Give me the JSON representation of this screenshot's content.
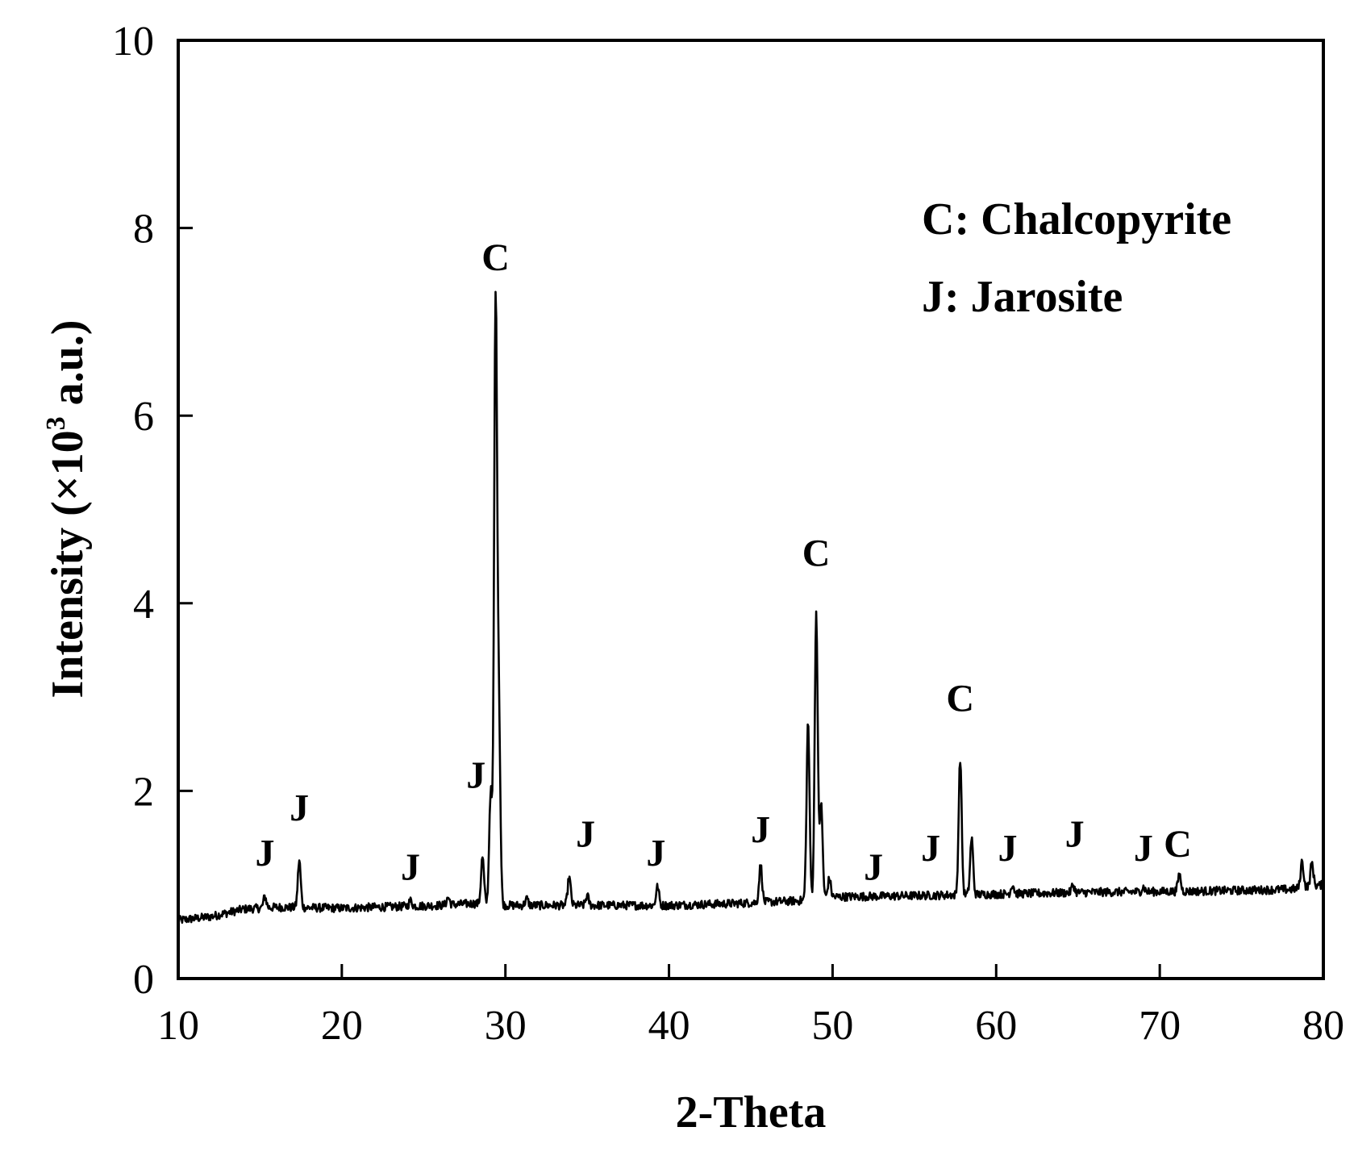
{
  "chart_data": {
    "type": "line",
    "title": "",
    "xlabel": "2-Theta",
    "ylabel_main": "Intensity (×10",
    "ylabel_sup": "3",
    "ylabel_tail": " a.u.)",
    "xlim": [
      10,
      80
    ],
    "ylim": [
      0,
      10
    ],
    "xticks": [
      10,
      20,
      30,
      40,
      50,
      60,
      70,
      80
    ],
    "yticks": [
      0,
      2,
      4,
      6,
      8,
      10
    ],
    "grid": false,
    "line_color": "#000000",
    "legend": {
      "placement": "top-right",
      "entries": [
        "C: Chalcopyrite",
        "J: Jarosite"
      ]
    },
    "series": [
      {
        "baseline": [
          [
            10,
            0.62
          ],
          [
            12,
            0.66
          ],
          [
            14,
            0.74
          ],
          [
            16,
            0.76
          ],
          [
            20,
            0.75
          ],
          [
            26,
            0.78
          ],
          [
            28,
            0.8
          ],
          [
            30,
            0.78
          ],
          [
            34,
            0.78
          ],
          [
            40,
            0.78
          ],
          [
            44,
            0.8
          ],
          [
            48,
            0.83
          ],
          [
            50,
            0.87
          ],
          [
            54,
            0.88
          ],
          [
            60,
            0.9
          ],
          [
            66,
            0.92
          ],
          [
            72,
            0.93
          ],
          [
            78,
            0.95
          ],
          [
            80,
            1.0
          ]
        ],
        "peaks": [
          [
            15.3,
            0.12
          ],
          [
            17.4,
            0.5
          ],
          [
            24.2,
            0.06
          ],
          [
            26.5,
            0.08
          ],
          [
            28.6,
            0.5
          ],
          [
            29.1,
            1.2
          ],
          [
            29.4,
            6.4
          ],
          [
            29.6,
            2.0
          ],
          [
            31.3,
            0.07
          ],
          [
            33.9,
            0.3
          ],
          [
            35.0,
            0.1
          ],
          [
            39.3,
            0.2
          ],
          [
            45.6,
            0.4
          ],
          [
            48.5,
            1.9
          ],
          [
            49.0,
            3.05
          ],
          [
            49.3,
            1.0
          ],
          [
            49.8,
            0.2
          ],
          [
            57.8,
            1.45
          ],
          [
            58.5,
            0.6
          ],
          [
            61.0,
            0.1
          ],
          [
            64.7,
            0.08
          ],
          [
            69.0,
            0.05
          ],
          [
            71.2,
            0.18
          ],
          [
            78.7,
            0.28
          ],
          [
            79.3,
            0.25
          ]
        ]
      }
    ],
    "annotations": [
      {
        "text": "J",
        "x": 15.3,
        "y": 1.2
      },
      {
        "text": "J",
        "x": 17.4,
        "y": 1.68
      },
      {
        "text": "J",
        "x": 24.2,
        "y": 1.05
      },
      {
        "text": "J",
        "x": 28.2,
        "y": 2.03
      },
      {
        "text": "C",
        "x": 29.4,
        "y": 7.55
      },
      {
        "text": "J",
        "x": 34.9,
        "y": 1.4
      },
      {
        "text": "J",
        "x": 39.2,
        "y": 1.2
      },
      {
        "text": "J",
        "x": 45.6,
        "y": 1.45
      },
      {
        "text": "C",
        "x": 49.0,
        "y": 4.4
      },
      {
        "text": "J",
        "x": 52.5,
        "y": 1.05
      },
      {
        "text": "J",
        "x": 56.0,
        "y": 1.25
      },
      {
        "text": "C",
        "x": 57.8,
        "y": 2.85
      },
      {
        "text": "J",
        "x": 60.7,
        "y": 1.25
      },
      {
        "text": "J",
        "x": 64.8,
        "y": 1.4
      },
      {
        "text": "J",
        "x": 69.0,
        "y": 1.25
      },
      {
        "text": "C",
        "x": 71.1,
        "y": 1.3
      }
    ]
  }
}
